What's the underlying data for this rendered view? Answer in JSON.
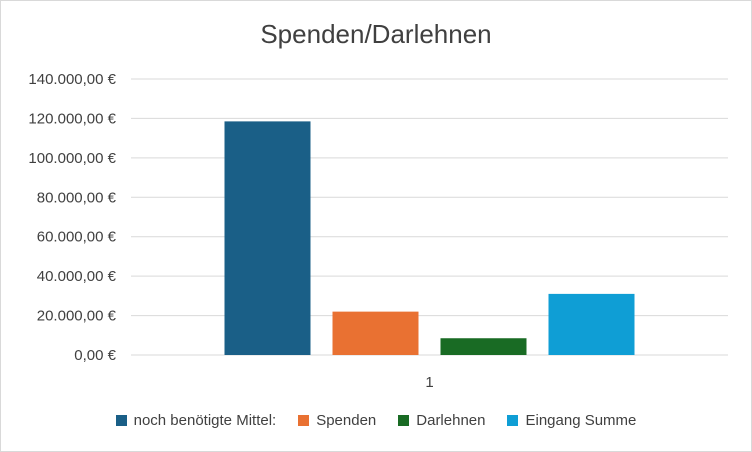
{
  "chart_data": {
    "type": "bar",
    "title": "Spenden/Darlehnen",
    "categories": [
      "1"
    ],
    "series": [
      {
        "name": "noch benötigte Mittel:",
        "values": [
          118500
        ],
        "color": "#1a5f87"
      },
      {
        "name": "Spenden",
        "values": [
          22000
        ],
        "color": "#e97132"
      },
      {
        "name": "Darlehnen",
        "values": [
          8500
        ],
        "color": "#196b24"
      },
      {
        "name": "Eingang Summe",
        "values": [
          31000
        ],
        "color": "#0f9ed5"
      }
    ],
    "ylim": [
      0,
      140000
    ],
    "yticks": [
      0,
      20000,
      40000,
      60000,
      80000,
      100000,
      120000,
      140000
    ],
    "ytick_labels": [
      "0,00 €",
      "20.000,00 €",
      "40.000,00 €",
      "60.000,00 €",
      "80.000,00 €",
      "100.000,00 €",
      "120.000,00 €",
      "140.000,00 €"
    ],
    "xlabel": "",
    "ylabel": "",
    "grid": true,
    "legend_position": "bottom"
  }
}
